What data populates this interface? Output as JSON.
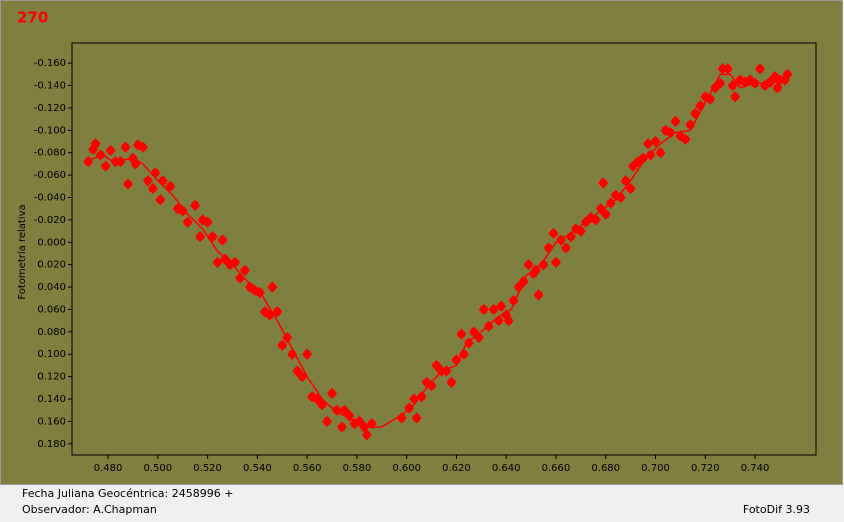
{
  "chart_data": {
    "type": "scatter",
    "title": "270",
    "y_label": "Fotometría relativa",
    "x_label": "Fecha Juliana Geocéntrica: 2458996 +",
    "xlim": [
      0.4655,
      0.7645
    ],
    "ylim": [
      -0.178,
      0.19
    ],
    "y_inverted": true,
    "grid": false,
    "xticks": [
      {
        "value": 0.48,
        "label": "0.480"
      },
      {
        "value": 0.5,
        "label": "0.500"
      },
      {
        "value": 0.52,
        "label": "0.520"
      },
      {
        "value": 0.54,
        "label": "0.540"
      },
      {
        "value": 0.56,
        "label": "0.560"
      },
      {
        "value": 0.58,
        "label": "0.580"
      },
      {
        "value": 0.6,
        "label": "0.600"
      },
      {
        "value": 0.62,
        "label": "0.620"
      },
      {
        "value": 0.64,
        "label": "0.640"
      },
      {
        "value": 0.66,
        "label": "0.660"
      },
      {
        "value": 0.68,
        "label": "0.680"
      },
      {
        "value": 0.7,
        "label": "0.700"
      },
      {
        "value": 0.72,
        "label": "0.720"
      },
      {
        "value": 0.74,
        "label": "0.740"
      }
    ],
    "yticks": [
      {
        "value": -0.16,
        "label": "-0.160"
      },
      {
        "value": -0.14,
        "label": "-0.140"
      },
      {
        "value": -0.12,
        "label": "-0.120"
      },
      {
        "value": -0.1,
        "label": "-0.100"
      },
      {
        "value": -0.08,
        "label": "-0.080"
      },
      {
        "value": -0.06,
        "label": "-0.060"
      },
      {
        "value": -0.04,
        "label": "-0.040"
      },
      {
        "value": -0.02,
        "label": "-0.020"
      },
      {
        "value": 0,
        "label": "0.000"
      },
      {
        "value": 0.02,
        "label": "0.020"
      },
      {
        "value": 0.04,
        "label": "0.040"
      },
      {
        "value": 0.06,
        "label": "0.060"
      },
      {
        "value": 0.08,
        "label": "0.080"
      },
      {
        "value": 0.1,
        "label": "0.100"
      },
      {
        "value": 0.12,
        "label": "0.120"
      },
      {
        "value": 0.14,
        "label": "0.140"
      },
      {
        "value": 0.16,
        "label": "0.160"
      },
      {
        "value": 0.18,
        "label": "0.180"
      }
    ],
    "series": [
      {
        "type": "scatter",
        "color": "#ff0000",
        "x": [
          0.472,
          0.474,
          0.475,
          0.477,
          0.479,
          0.481,
          0.483,
          0.485,
          0.487,
          0.488,
          0.49,
          0.491,
          0.492,
          0.494,
          0.496,
          0.498,
          0.499,
          0.501,
          0.502,
          0.505,
          0.508,
          0.51,
          0.512,
          0.515,
          0.517,
          0.518,
          0.52,
          0.522,
          0.524,
          0.526,
          0.527,
          0.529,
          0.531,
          0.533,
          0.535,
          0.537,
          0.539,
          0.541,
          0.543,
          0.545,
          0.546,
          0.548,
          0.55,
          0.552,
          0.554,
          0.556,
          0.558,
          0.56,
          0.562,
          0.564,
          0.566,
          0.568,
          0.57,
          0.572,
          0.574,
          0.575,
          0.577,
          0.579,
          0.581,
          0.583,
          0.584,
          0.586,
          0.598,
          0.601,
          0.603,
          0.604,
          0.606,
          0.608,
          0.61,
          0.612,
          0.614,
          0.616,
          0.618,
          0.62,
          0.622,
          0.623,
          0.625,
          0.627,
          0.629,
          0.631,
          0.633,
          0.635,
          0.637,
          0.638,
          0.64,
          0.641,
          0.643,
          0.645,
          0.647,
          0.649,
          0.651,
          0.652,
          0.653,
          0.655,
          0.657,
          0.659,
          0.66,
          0.662,
          0.664,
          0.666,
          0.668,
          0.67,
          0.672,
          0.674,
          0.676,
          0.678,
          0.679,
          0.68,
          0.682,
          0.684,
          0.686,
          0.688,
          0.69,
          0.691,
          0.693,
          0.695,
          0.697,
          0.698,
          0.7,
          0.702,
          0.704,
          0.706,
          0.708,
          0.71,
          0.712,
          0.714,
          0.716,
          0.718,
          0.72,
          0.722,
          0.724,
          0.726,
          0.727,
          0.729,
          0.731,
          0.732,
          0.734,
          0.736,
          0.738,
          0.74,
          0.742,
          0.744,
          0.746,
          0.748,
          0.749,
          0.75,
          0.752,
          0.753
        ],
        "values": [
          -0.072,
          -0.083,
          -0.088,
          -0.078,
          -0.068,
          -0.082,
          -0.072,
          -0.072,
          -0.085,
          -0.052,
          -0.075,
          -0.07,
          -0.087,
          -0.085,
          -0.055,
          -0.048,
          -0.062,
          -0.038,
          -0.055,
          -0.05,
          -0.03,
          -0.028,
          -0.018,
          -0.033,
          -0.005,
          -0.02,
          -0.018,
          -0.005,
          0.018,
          -0.002,
          0.015,
          0.02,
          0.018,
          0.032,
          0.025,
          0.04,
          0.043,
          0.045,
          0.062,
          0.065,
          0.04,
          0.062,
          0.092,
          0.085,
          0.1,
          0.115,
          0.12,
          0.1,
          0.138,
          0.14,
          0.145,
          0.16,
          0.135,
          0.15,
          0.165,
          0.15,
          0.155,
          0.162,
          0.16,
          0.165,
          0.172,
          0.162,
          0.157,
          0.148,
          0.14,
          0.157,
          0.138,
          0.125,
          0.128,
          0.11,
          0.115,
          0.115,
          0.125,
          0.105,
          0.082,
          0.1,
          0.09,
          0.08,
          0.085,
          0.06,
          0.075,
          0.06,
          0.07,
          0.057,
          0.065,
          0.07,
          0.052,
          0.04,
          0.035,
          0.02,
          0.028,
          0.025,
          0.047,
          0.02,
          0.005,
          -0.008,
          0.018,
          -0.002,
          0.005,
          -0.005,
          -0.012,
          -0.01,
          -0.018,
          -0.022,
          -0.02,
          -0.03,
          -0.053,
          -0.025,
          -0.035,
          -0.042,
          -0.04,
          -0.055,
          -0.048,
          -0.068,
          -0.072,
          -0.075,
          -0.088,
          -0.078,
          -0.09,
          -0.08,
          -0.1,
          -0.098,
          -0.108,
          -0.095,
          -0.092,
          -0.105,
          -0.115,
          -0.122,
          -0.13,
          -0.128,
          -0.138,
          -0.142,
          -0.155,
          -0.155,
          -0.14,
          -0.13,
          -0.145,
          -0.143,
          -0.145,
          -0.142,
          -0.155,
          -0.14,
          -0.143,
          -0.148,
          -0.138,
          -0.145,
          -0.145,
          -0.15
        ]
      },
      {
        "type": "line",
        "color": "#ff0000",
        "x": [
          0.472,
          0.478,
          0.482,
          0.49,
          0.494,
          0.5,
          0.506,
          0.512,
          0.518,
          0.524,
          0.53,
          0.536,
          0.542,
          0.548,
          0.554,
          0.56,
          0.566,
          0.572,
          0.578,
          0.584,
          0.59,
          0.596,
          0.602,
          0.608,
          0.614,
          0.62,
          0.624,
          0.63,
          0.636,
          0.642,
          0.648,
          0.654,
          0.66,
          0.666,
          0.672,
          0.678,
          0.684,
          0.69,
          0.696,
          0.702,
          0.708,
          0.714,
          0.72,
          0.726,
          0.73,
          0.734,
          0.74,
          0.746,
          0.752
        ],
        "values": [
          -0.073,
          -0.078,
          -0.072,
          -0.075,
          -0.07,
          -0.055,
          -0.042,
          -0.025,
          -0.012,
          0.008,
          0.02,
          0.035,
          0.048,
          0.07,
          0.095,
          0.12,
          0.14,
          0.152,
          0.158,
          0.165,
          0.165,
          0.157,
          0.148,
          0.13,
          0.115,
          0.11,
          0.09,
          0.08,
          0.068,
          0.06,
          0.03,
          0.02,
          0.0,
          -0.008,
          -0.018,
          -0.028,
          -0.038,
          -0.055,
          -0.075,
          -0.088,
          -0.098,
          -0.1,
          -0.125,
          -0.15,
          -0.15,
          -0.138,
          -0.142,
          -0.142,
          -0.145
        ]
      }
    ]
  },
  "footer": {
    "observer": "Observador: A.Chapman",
    "software": "FotoDif 3.93"
  }
}
